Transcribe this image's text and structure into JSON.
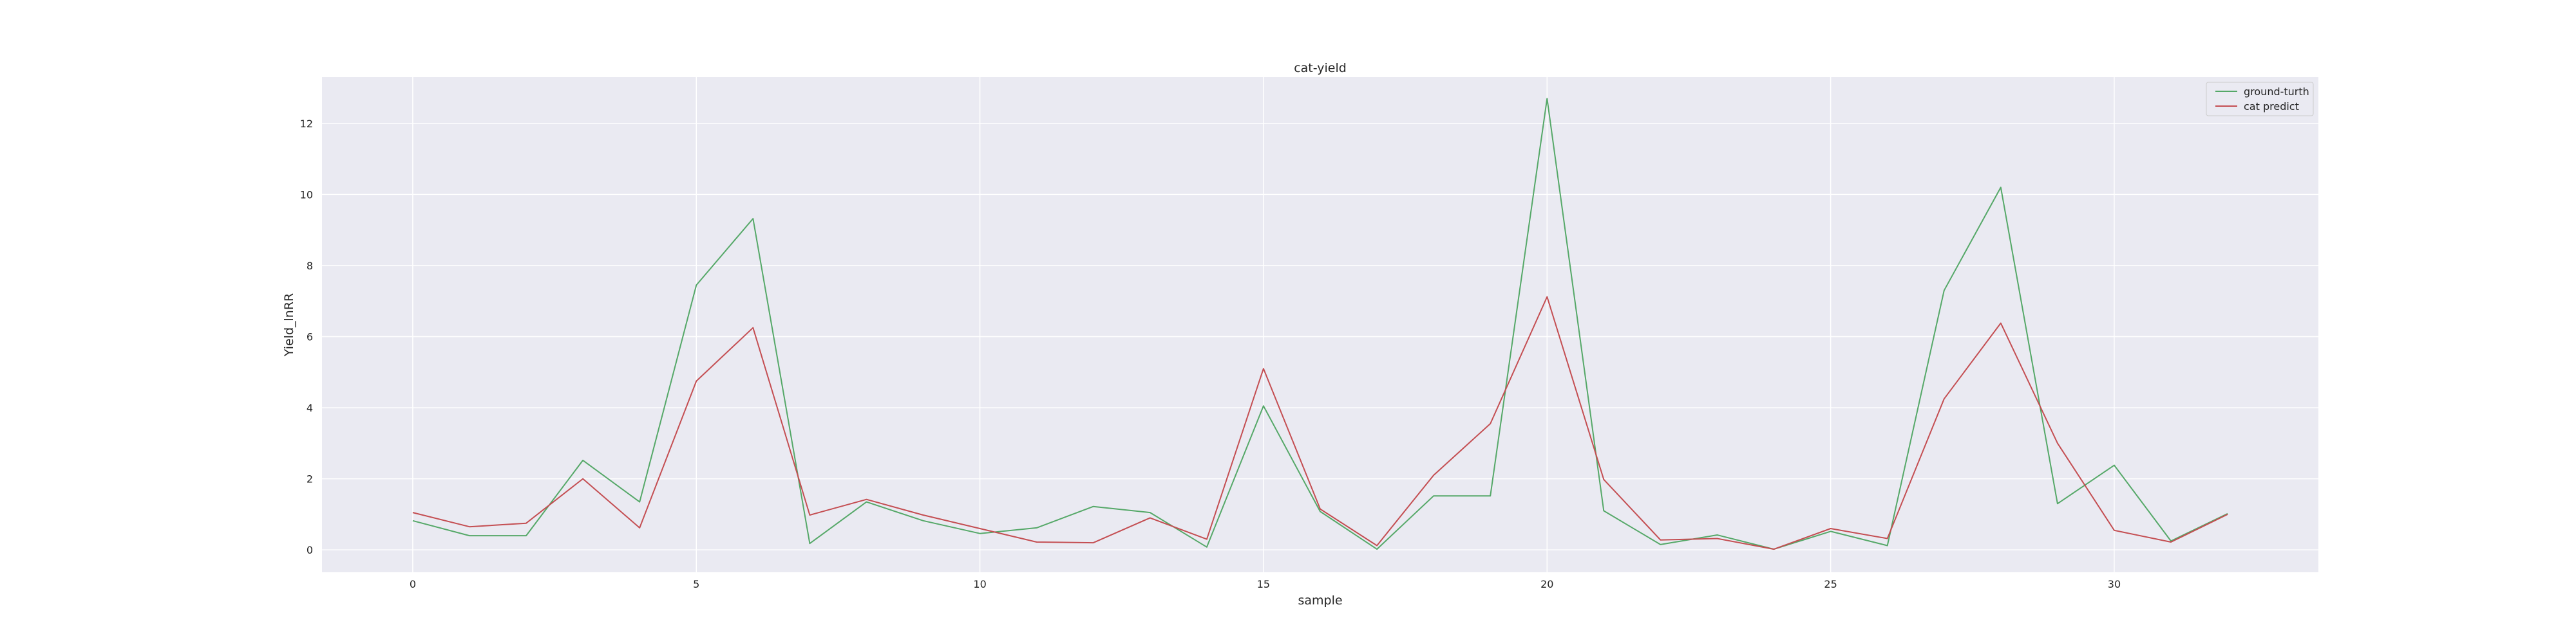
{
  "chart_data": {
    "type": "line",
    "title": "cat-yield",
    "xlabel": "sample",
    "ylabel": "Yield_lnRR",
    "xlim": [
      -1.6,
      33.6
    ],
    "ylim": [
      -0.63,
      13.3
    ],
    "xticks": [
      0,
      5,
      10,
      15,
      20,
      25,
      30
    ],
    "yticks": [
      0,
      2,
      4,
      6,
      8,
      10,
      12
    ],
    "grid": true,
    "legend_position": "top-right",
    "x": [
      0,
      1,
      2,
      3,
      4,
      5,
      6,
      7,
      8,
      9,
      10,
      11,
      12,
      13,
      14,
      15,
      16,
      17,
      18,
      19,
      20,
      21,
      22,
      23,
      24,
      25,
      26,
      27,
      28,
      29,
      30,
      31,
      32
    ],
    "series": [
      {
        "name": "ground-turth",
        "color": "#55a868",
        "values": [
          0.82,
          0.4,
          0.4,
          2.52,
          1.35,
          7.45,
          9.32,
          0.18,
          1.35,
          0.82,
          0.46,
          0.62,
          1.22,
          1.05,
          0.08,
          4.05,
          1.08,
          0.02,
          1.52,
          1.52,
          12.7,
          1.1,
          0.15,
          0.42,
          0.02,
          0.52,
          0.12,
          7.3,
          10.2,
          1.3,
          2.38,
          0.25,
          1.02
        ]
      },
      {
        "name": "cat predict",
        "color": "#c44e52",
        "values": [
          1.05,
          0.65,
          0.75,
          2.0,
          0.62,
          4.75,
          6.25,
          0.98,
          1.42,
          0.98,
          0.6,
          0.22,
          0.2,
          0.9,
          0.3,
          5.1,
          1.15,
          0.12,
          2.1,
          3.55,
          7.12,
          1.98,
          0.28,
          0.32,
          0.02,
          0.6,
          0.32,
          4.25,
          6.38,
          3.0,
          0.55,
          0.22,
          1.0
        ]
      }
    ]
  }
}
